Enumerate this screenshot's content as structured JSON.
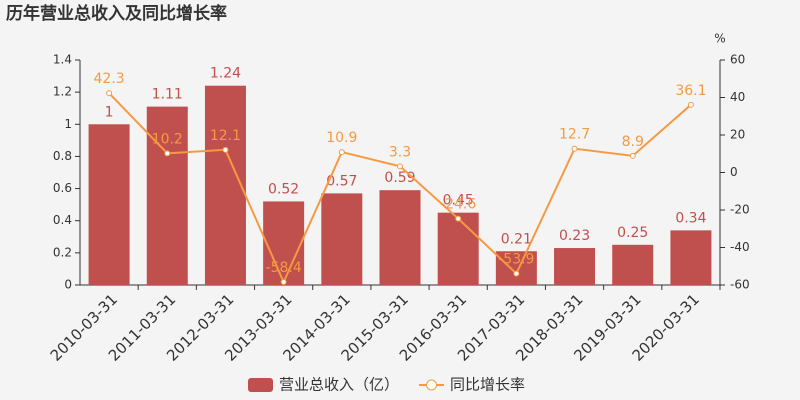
{
  "chart_data": {
    "type": "bar",
    "title": "历年营业总收入及同比增长率",
    "categories": [
      "2010-03-31",
      "2011-03-31",
      "2012-03-31",
      "2013-03-31",
      "2014-03-31",
      "2015-03-31",
      "2016-03-31",
      "2017-03-31",
      "2018-03-31",
      "2019-03-31",
      "2020-03-31"
    ],
    "series": [
      {
        "name": "营业总收入（亿）",
        "type": "bar",
        "color": "#c0504d",
        "values": [
          1,
          1.11,
          1.24,
          0.52,
          0.57,
          0.59,
          0.45,
          0.21,
          0.23,
          0.25,
          0.34
        ]
      },
      {
        "name": "同比增长率",
        "type": "line",
        "axis": "y2",
        "color": "#f59a42",
        "values": [
          42.3,
          10.2,
          12.1,
          -58.4,
          10.9,
          3.3,
          -24.6,
          -53.9,
          12.7,
          8.9,
          36.1
        ]
      }
    ],
    "ylim": [
      0,
      1.4
    ],
    "yticks": [
      0,
      0.2,
      0.4,
      0.6,
      0.8,
      1,
      1.2,
      1.4
    ],
    "y2label": "%",
    "y2lim": [
      -60,
      60
    ],
    "y2ticks": [
      -60,
      -40,
      -20,
      0,
      20,
      40,
      60
    ],
    "grid": false,
    "legend": "bottom"
  }
}
